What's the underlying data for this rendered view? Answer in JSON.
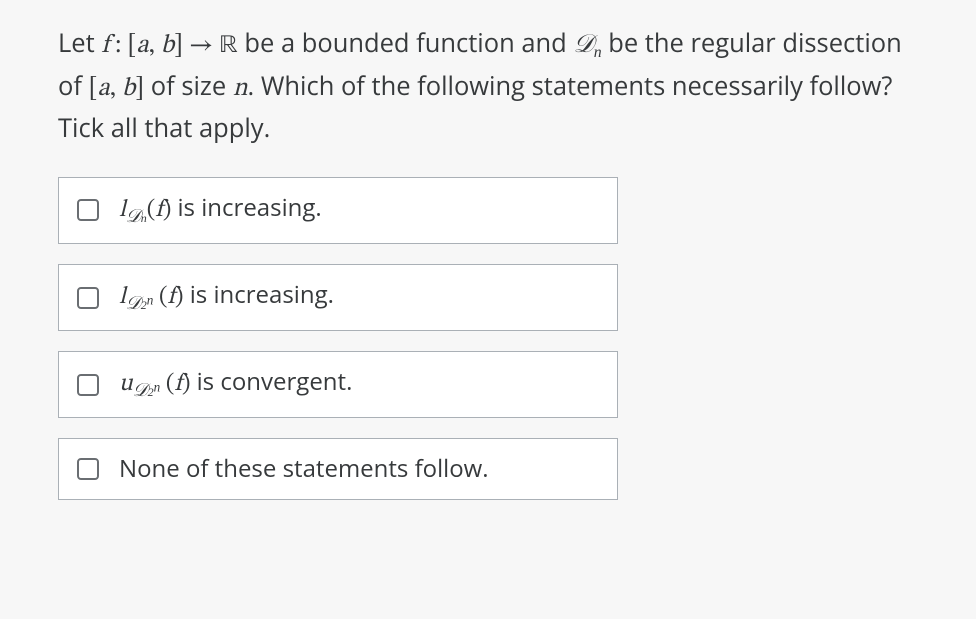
{
  "question": {
    "text_pre": "Let ",
    "f": "f",
    "colon": " : ",
    "lbrack": "[",
    "a": "a",
    "comma1": ", ",
    "b": "b",
    "rbrack": "]",
    "arrow": " → ",
    "R": "ℝ",
    "text_mid1": " be a bounded function and ",
    "D": "𝒟",
    "n": "n",
    "text_mid2": " be the regular dissection of ",
    "lbrack2": "[",
    "a2": "a",
    "comma2": ", ",
    "b2": "b",
    "rbrack2": "]",
    "text_mid3": " of size ",
    "n2": "n",
    "text_end": ". Which of the following statements necessarily follow? Tick all that apply."
  },
  "options": [
    {
      "lead": "l",
      "D": "𝒟",
      "sub_plain": "n",
      "sub_exp": "",
      "lparen": "(",
      "f": "f",
      "rparen": ")",
      "tail": " is increasing."
    },
    {
      "lead": "l",
      "D": "𝒟",
      "sub_plain": "2",
      "sub_exp": "n",
      "lparen": "(",
      "f": "f",
      "rparen": ")",
      "tail": " is increasing."
    },
    {
      "lead": "u",
      "D": "𝒟",
      "sub_plain": "2",
      "sub_exp": "n",
      "lparen": "(",
      "f": "f",
      "rparen": ")",
      "tail": " is convergent."
    },
    {
      "lead": "",
      "D": "",
      "sub_plain": "",
      "sub_exp": "",
      "lparen": "",
      "f": "",
      "rparen": "",
      "tail": "None of these statements follow."
    }
  ],
  "style": {
    "background": "#f7f7f7",
    "option_border": "#aab0b6",
    "text_color": "#373a3c",
    "checkbox_border": "#6a6e72",
    "question_fontsize": 25.5,
    "option_fontsize": 24,
    "options_width": 560
  }
}
